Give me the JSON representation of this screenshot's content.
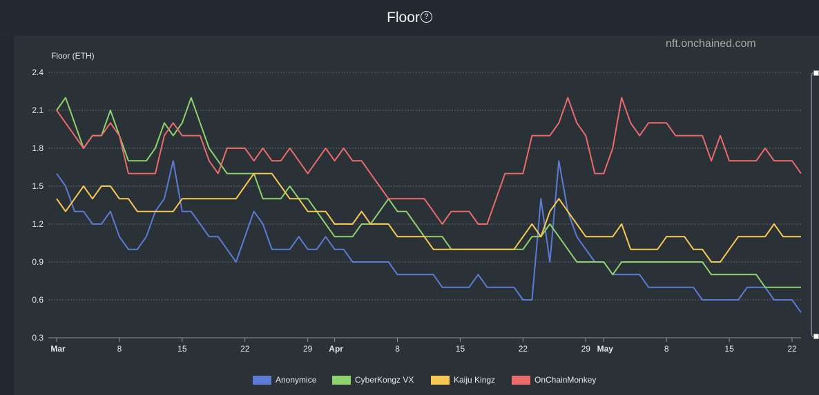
{
  "page": {
    "title": "Floor",
    "help_icon": "question-circle-icon",
    "watermark": "nft.onchained.com"
  },
  "chart_data": {
    "type": "line",
    "title": "Floor",
    "ylabel": "Floor (ETH)",
    "xlabel": "",
    "ylim": [
      0.3,
      2.4
    ],
    "yticks": [
      0.3,
      0.6,
      0.9,
      1.2,
      1.5,
      1.8,
      2.1,
      2.4
    ],
    "x_start": "Mar 1",
    "x_days": 84,
    "xticks": [
      {
        "day": 0,
        "label": "Mar",
        "bold": true
      },
      {
        "day": 7,
        "label": "8"
      },
      {
        "day": 14,
        "label": "15"
      },
      {
        "day": 21,
        "label": "22"
      },
      {
        "day": 28,
        "label": "29"
      },
      {
        "day": 31,
        "label": "Apr",
        "bold": true
      },
      {
        "day": 38,
        "label": "8"
      },
      {
        "day": 45,
        "label": "15"
      },
      {
        "day": 52,
        "label": "22"
      },
      {
        "day": 59,
        "label": "29"
      },
      {
        "day": 61,
        "label": "May",
        "bold": true
      },
      {
        "day": 68,
        "label": "8"
      },
      {
        "day": 75,
        "label": "15"
      },
      {
        "day": 82,
        "label": "22"
      }
    ],
    "legend_position": "bottom",
    "series": [
      {
        "name": "Anonymice",
        "color": "#5b7bd5",
        "x": [
          0,
          1,
          2,
          3,
          4,
          5,
          6,
          7,
          8,
          9,
          10,
          11,
          12,
          13,
          14,
          15,
          16,
          17,
          18,
          19,
          20,
          21,
          22,
          23,
          24,
          25,
          26,
          27,
          28,
          29,
          30,
          31,
          32,
          33,
          34,
          35,
          36,
          37,
          38,
          39,
          40,
          41,
          42,
          43,
          44,
          45,
          46,
          47,
          48,
          49,
          50,
          51,
          52,
          53,
          54,
          55,
          56,
          57,
          58,
          59,
          60,
          61,
          62,
          63,
          64,
          65,
          66,
          67,
          68,
          69,
          70,
          71,
          72,
          73,
          74,
          75,
          76,
          77,
          78,
          79,
          80,
          81,
          82,
          83
        ],
        "values": [
          1.6,
          1.5,
          1.3,
          1.3,
          1.2,
          1.2,
          1.3,
          1.1,
          1.0,
          1.0,
          1.1,
          1.3,
          1.4,
          1.7,
          1.3,
          1.3,
          1.2,
          1.1,
          1.1,
          1.0,
          0.9,
          1.1,
          1.3,
          1.2,
          1.0,
          1.0,
          1.0,
          1.1,
          1.0,
          1.0,
          1.1,
          1.0,
          1.0,
          0.9,
          0.9,
          0.9,
          0.9,
          0.9,
          0.8,
          0.8,
          0.8,
          0.8,
          0.8,
          0.7,
          0.7,
          0.7,
          0.7,
          0.8,
          0.7,
          0.7,
          0.7,
          0.7,
          0.6,
          0.6,
          1.4,
          0.9,
          1.7,
          1.3,
          1.1,
          1.0,
          0.9,
          0.9,
          0.8,
          0.8,
          0.8,
          0.8,
          0.7,
          0.7,
          0.7,
          0.7,
          0.7,
          0.7,
          0.6,
          0.6,
          0.6,
          0.6,
          0.6,
          0.7,
          0.7,
          0.7,
          0.6,
          0.6,
          0.6,
          0.5
        ]
      },
      {
        "name": "CyberKongz VX",
        "color": "#8ed26e",
        "x": [
          0,
          1,
          2,
          3,
          4,
          5,
          6,
          7,
          8,
          9,
          10,
          11,
          12,
          13,
          14,
          15,
          16,
          17,
          18,
          19,
          20,
          21,
          22,
          23,
          24,
          25,
          26,
          27,
          28,
          29,
          30,
          31,
          32,
          33,
          34,
          35,
          36,
          37,
          38,
          39,
          40,
          41,
          42,
          43,
          44,
          45,
          46,
          47,
          48,
          49,
          50,
          51,
          52,
          53,
          54,
          55,
          56,
          57,
          58,
          59,
          60,
          61,
          62,
          63,
          64,
          65,
          66,
          67,
          68,
          69,
          70,
          71,
          72,
          73,
          74,
          75,
          76,
          77,
          78,
          79,
          80,
          81,
          82,
          83
        ],
        "values": [
          2.1,
          2.2,
          2.0,
          1.8,
          1.9,
          1.9,
          2.1,
          1.9,
          1.7,
          1.7,
          1.7,
          1.8,
          2.0,
          1.9,
          2.0,
          2.2,
          2.0,
          1.8,
          1.7,
          1.6,
          1.6,
          1.6,
          1.6,
          1.4,
          1.4,
          1.4,
          1.5,
          1.4,
          1.4,
          1.3,
          1.2,
          1.1,
          1.1,
          1.1,
          1.2,
          1.2,
          1.3,
          1.4,
          1.3,
          1.3,
          1.2,
          1.1,
          1.1,
          1.1,
          1.0,
          1.0,
          1.0,
          1.0,
          1.0,
          1.0,
          1.0,
          1.0,
          1.0,
          1.1,
          1.1,
          1.2,
          1.1,
          1.0,
          0.9,
          0.9,
          0.9,
          0.9,
          0.8,
          0.9,
          0.9,
          0.9,
          0.9,
          0.9,
          0.9,
          0.9,
          0.9,
          0.9,
          0.9,
          0.8,
          0.8,
          0.8,
          0.8,
          0.8,
          0.8,
          0.7,
          0.7,
          0.7,
          0.7,
          0.7
        ]
      },
      {
        "name": "Kaiju Kingz",
        "color": "#f7c953",
        "x": [
          0,
          1,
          2,
          3,
          4,
          5,
          6,
          7,
          8,
          9,
          10,
          11,
          12,
          13,
          14,
          15,
          16,
          17,
          18,
          19,
          20,
          21,
          22,
          23,
          24,
          25,
          26,
          27,
          28,
          29,
          30,
          31,
          32,
          33,
          34,
          35,
          36,
          37,
          38,
          39,
          40,
          41,
          42,
          43,
          44,
          45,
          46,
          47,
          48,
          49,
          50,
          51,
          52,
          53,
          54,
          55,
          56,
          57,
          58,
          59,
          60,
          61,
          62,
          63,
          64,
          65,
          66,
          67,
          68,
          69,
          70,
          71,
          72,
          73,
          74,
          75,
          76,
          77,
          78,
          79,
          80,
          81,
          82,
          83
        ],
        "values": [
          1.4,
          1.3,
          1.4,
          1.5,
          1.4,
          1.5,
          1.5,
          1.4,
          1.4,
          1.3,
          1.3,
          1.3,
          1.3,
          1.3,
          1.4,
          1.4,
          1.4,
          1.4,
          1.4,
          1.4,
          1.4,
          1.5,
          1.6,
          1.6,
          1.6,
          1.5,
          1.4,
          1.4,
          1.3,
          1.3,
          1.3,
          1.2,
          1.2,
          1.2,
          1.3,
          1.2,
          1.2,
          1.2,
          1.1,
          1.1,
          1.1,
          1.1,
          1.0,
          1.0,
          1.0,
          1.0,
          1.0,
          1.0,
          1.0,
          1.0,
          1.0,
          1.0,
          1.1,
          1.2,
          1.1,
          1.3,
          1.4,
          1.3,
          1.2,
          1.1,
          1.1,
          1.1,
          1.1,
          1.2,
          1.0,
          1.0,
          1.0,
          1.0,
          1.1,
          1.1,
          1.1,
          1.0,
          1.0,
          0.9,
          0.9,
          1.0,
          1.1,
          1.1,
          1.1,
          1.1,
          1.2,
          1.1,
          1.1,
          1.1
        ]
      },
      {
        "name": "OnChainMonkey",
        "color": "#eb6b6b",
        "x": [
          0,
          1,
          2,
          3,
          4,
          5,
          6,
          7,
          8,
          9,
          10,
          11,
          12,
          13,
          14,
          15,
          16,
          17,
          18,
          19,
          20,
          21,
          22,
          23,
          24,
          25,
          26,
          27,
          28,
          29,
          30,
          31,
          32,
          33,
          34,
          35,
          36,
          37,
          38,
          39,
          40,
          41,
          42,
          43,
          44,
          45,
          46,
          47,
          48,
          49,
          50,
          51,
          52,
          53,
          54,
          55,
          56,
          57,
          58,
          59,
          60,
          61,
          62,
          63,
          64,
          65,
          66,
          67,
          68,
          69,
          70,
          71,
          72,
          73,
          74,
          75,
          76,
          77,
          78,
          79,
          80,
          81,
          82,
          83
        ],
        "values": [
          2.1,
          2.0,
          1.9,
          1.8,
          1.9,
          1.9,
          2.0,
          1.9,
          1.6,
          1.6,
          1.6,
          1.6,
          1.9,
          2.0,
          1.9,
          1.9,
          1.9,
          1.7,
          1.6,
          1.8,
          1.8,
          1.8,
          1.7,
          1.8,
          1.7,
          1.7,
          1.8,
          1.7,
          1.6,
          1.7,
          1.8,
          1.7,
          1.8,
          1.7,
          1.7,
          1.6,
          1.5,
          1.4,
          1.4,
          1.4,
          1.4,
          1.4,
          1.3,
          1.2,
          1.3,
          1.3,
          1.3,
          1.2,
          1.2,
          1.4,
          1.6,
          1.6,
          1.6,
          1.9,
          1.9,
          1.9,
          2.0,
          2.2,
          2.0,
          1.9,
          1.6,
          1.6,
          1.8,
          2.2,
          2.0,
          1.9,
          2.0,
          2.0,
          2.0,
          1.9,
          1.9,
          1.9,
          1.9,
          1.7,
          1.9,
          1.7,
          1.7,
          1.7,
          1.7,
          1.8,
          1.7,
          1.7,
          1.7,
          1.6
        ]
      }
    ]
  }
}
